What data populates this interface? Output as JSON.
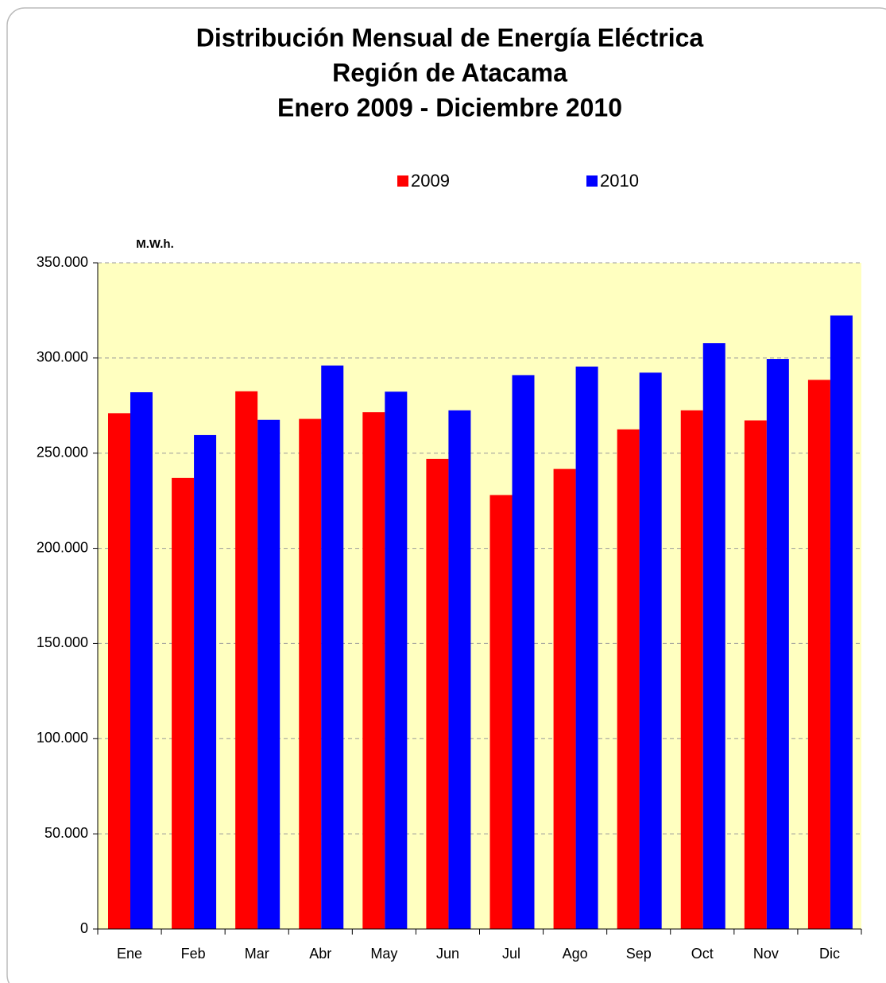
{
  "chart_data": {
    "type": "bar",
    "title": [
      "Distribución Mensual de Energía Eléctrica",
      "Región de Atacama",
      "Enero 2009 - Diciembre 2010"
    ],
    "y_label": "M.W.h.",
    "categories": [
      "Ene",
      "Feb",
      "Mar",
      "Abr",
      "May",
      "Jun",
      "Jul",
      "Ago",
      "Sep",
      "Oct",
      "Nov",
      "Dic"
    ],
    "series": [
      {
        "name": "2009",
        "color": "#ff0000",
        "values": [
          271000,
          237000,
          282500,
          268000,
          271500,
          247000,
          228000,
          241700,
          262500,
          272500,
          267200,
          288500
        ]
      },
      {
        "name": "2010",
        "color": "#0000ff",
        "values": [
          282000,
          259500,
          267500,
          296000,
          282300,
          272500,
          291000,
          295500,
          292300,
          307800,
          299500,
          322300
        ]
      }
    ],
    "ylim": [
      0,
      350000
    ],
    "yticks": [
      0,
      {
        "value": 50000,
        "label": "50.000"
      },
      {
        "value": 100000,
        "label": "100.000"
      },
      {
        "value": 150000,
        "label": "150.000"
      },
      {
        "value": 200000,
        "label": "200.000"
      },
      {
        "value": 250000,
        "label": "250.000"
      },
      {
        "value": 300000,
        "label": "300.000"
      },
      {
        "value": 350000,
        "label": "350.000"
      }
    ],
    "grid": true,
    "legend": "top",
    "plot_background": "#ffffc0"
  }
}
